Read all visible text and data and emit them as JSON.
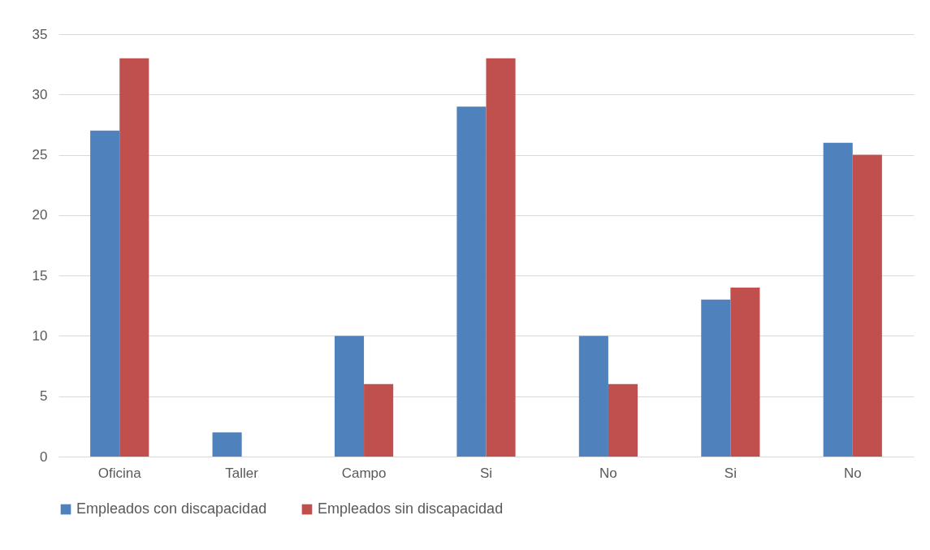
{
  "chart_data": {
    "type": "bar",
    "categories": [
      "Oficina",
      "Taller",
      "Campo",
      "Si",
      "No",
      "Si",
      "No"
    ],
    "series": [
      {
        "name": "Empleados con discapacidad",
        "color": "#4f81bd",
        "values": [
          27,
          2,
          10,
          29,
          10,
          13,
          26
        ]
      },
      {
        "name": "Empleados sin discapacidad",
        "color": "#c0504d",
        "values": [
          33,
          0,
          6,
          33,
          6,
          14,
          25
        ]
      }
    ],
    "ylim": [
      0,
      35
    ],
    "yticks": [
      0,
      5,
      10,
      15,
      20,
      25,
      30,
      35
    ],
    "grid": "y",
    "legend": "bottom"
  }
}
